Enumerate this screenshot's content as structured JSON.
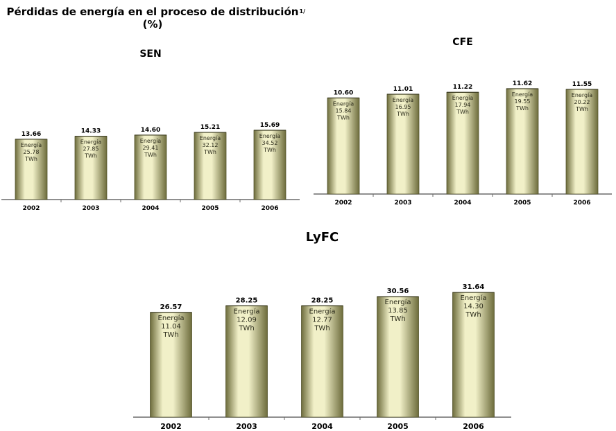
{
  "page": {
    "title_line1": "Pérdidas de energía en el proceso de distribución",
    "title_line2": "(%)",
    "footnote_marker": "1/"
  },
  "chart_data": [
    {
      "type": "bar",
      "title": "SEN",
      "categories": [
        "2002",
        "2003",
        "2004",
        "2005",
        "2006"
      ],
      "values": [
        13.66,
        14.33,
        14.6,
        15.21,
        15.69
      ],
      "value_labels": [
        "13.66",
        "14.33",
        "14.60",
        "15.21",
        "15.69"
      ],
      "bar_texts": [
        [
          "Energía",
          "25.78",
          "TWh"
        ],
        [
          "Energía",
          "27.85",
          "TWh"
        ],
        [
          "Energía",
          "29.41",
          "TWh"
        ],
        [
          "Energía",
          "32.12",
          "TWh"
        ],
        [
          "Energía",
          "34.52",
          "TWh"
        ]
      ],
      "colors": {
        "bar_light": "#f1f0c8",
        "bar_dark": "#6d6c3c"
      }
    },
    {
      "type": "bar",
      "title": "CFE",
      "categories": [
        "2002",
        "2003",
        "2004",
        "2005",
        "2006"
      ],
      "values": [
        10.6,
        11.01,
        11.22,
        11.62,
        11.55
      ],
      "value_labels": [
        "10.60",
        "11.01",
        "11.22",
        "11.62",
        "11.55"
      ],
      "bar_texts": [
        [
          "Energía",
          "15.84",
          "TWh"
        ],
        [
          "Energía",
          "16.95",
          "TWh"
        ],
        [
          "Energía",
          "17.94",
          "TWh"
        ],
        [
          "Energía",
          "19.55",
          "TWh"
        ],
        [
          "Energía",
          "20.22",
          "TWh"
        ]
      ],
      "colors": {
        "bar_light": "#f1f0c8",
        "bar_dark": "#6d6c3c"
      }
    },
    {
      "type": "bar",
      "title": "LyFC",
      "categories": [
        "2002",
        "2003",
        "2004",
        "2005",
        "2006"
      ],
      "values": [
        26.57,
        28.25,
        28.25,
        30.56,
        31.64
      ],
      "value_labels": [
        "26.57",
        "28.25",
        "28.25",
        "30.56",
        "31.64"
      ],
      "bar_texts": [
        [
          "Energía",
          "11.04",
          "TWh"
        ],
        [
          "Energía",
          "12.09",
          "TWh"
        ],
        [
          "Energía",
          "12.77",
          "TWh"
        ],
        [
          "Energía",
          "13.85",
          "TWh"
        ],
        [
          "Energía",
          "14.30",
          "TWh"
        ]
      ],
      "colors": {
        "bar_light": "#f1f0c8",
        "bar_dark": "#6d6c3c"
      }
    }
  ]
}
